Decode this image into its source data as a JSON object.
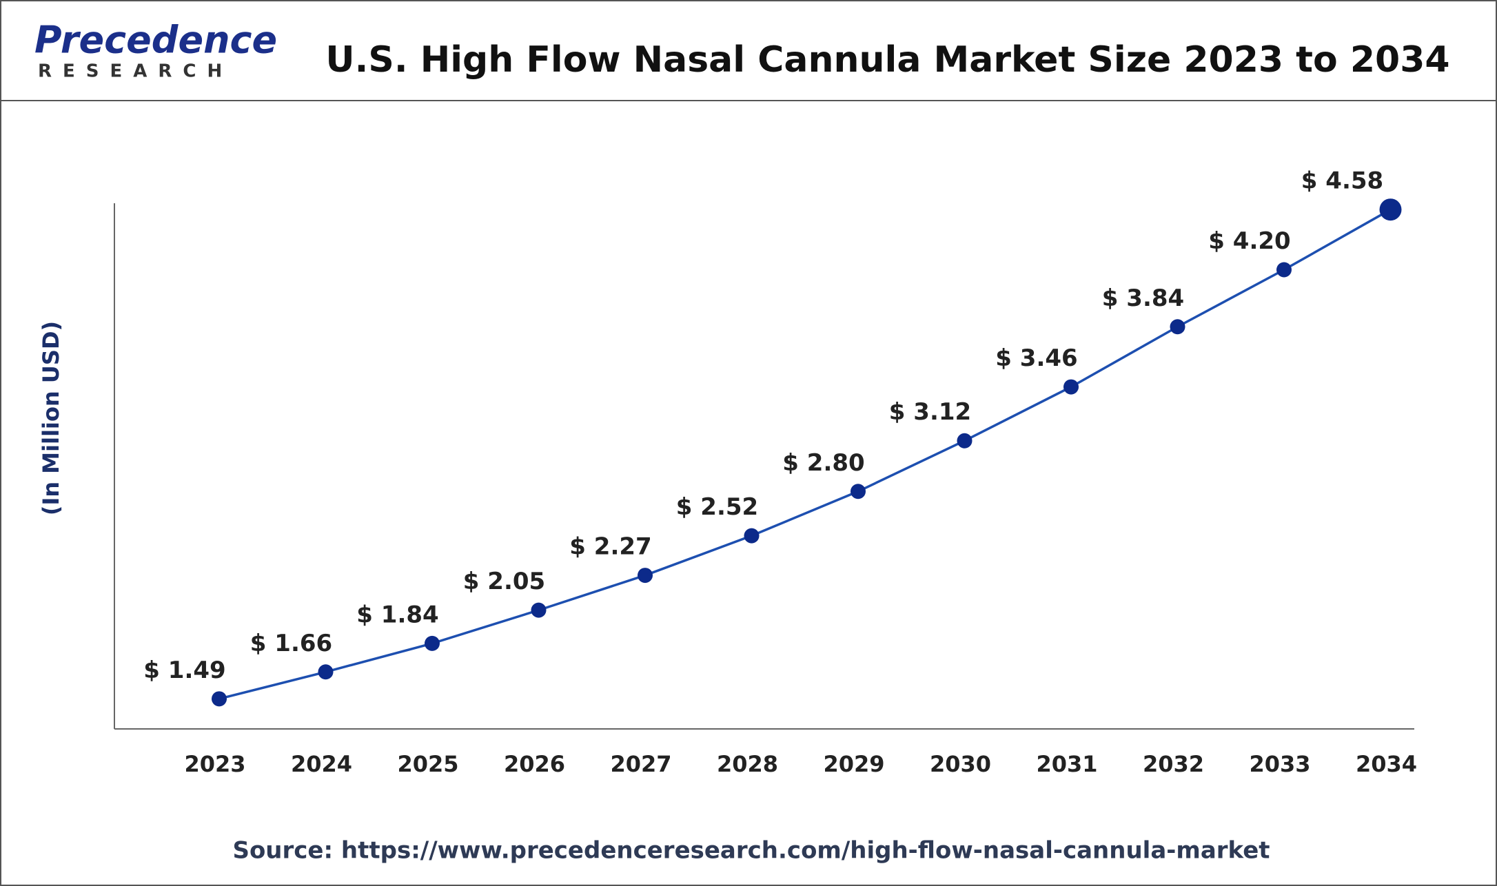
{
  "logo": {
    "name": "Precedence",
    "subtitle": "RESEARCH"
  },
  "chart_data": {
    "type": "line",
    "title": "U.S. High Flow Nasal Cannula Market Size 2023 to 2034",
    "y_label": "(In Million USD)",
    "source": "Source: https://www.precedenceresearch.com/high-flow-nasal-cannula-market",
    "categories": [
      "2023",
      "2024",
      "2025",
      "2026",
      "2027",
      "2028",
      "2029",
      "2030",
      "2031",
      "2032",
      "2033",
      "2034"
    ],
    "values": [
      1.49,
      1.66,
      1.84,
      2.05,
      2.27,
      2.52,
      2.8,
      3.12,
      3.46,
      3.84,
      4.2,
      4.58
    ],
    "value_labels": [
      "$ 1.49",
      "$ 1.66",
      "$ 1.84",
      "$ 2.05",
      "$ 2.27",
      "$ 2.52",
      "$ 2.80",
      "$ 3.12",
      "$ 3.46",
      "$ 3.84",
      "$ 4.20",
      "$ 4.58"
    ],
    "color": "#1d4fb0",
    "marker_color": "#0c2a8a",
    "ylim": [
      1.3,
      4.62
    ],
    "grid": false
  }
}
